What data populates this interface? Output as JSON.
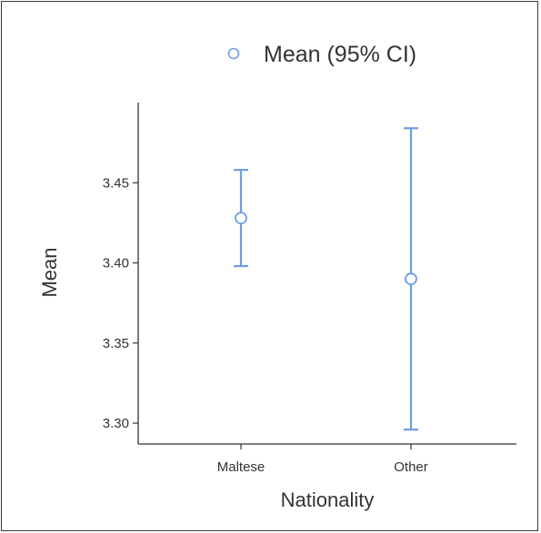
{
  "chart_data": {
    "type": "scatter",
    "title": "",
    "xlabel": "Nationality",
    "ylabel": "Mean",
    "categories": [
      "Maltese",
      "Other"
    ],
    "series": [
      {
        "name": "Mean (95% CI)",
        "color": "#6f9de8",
        "values": [
          3.428,
          3.39
        ],
        "ci_lower": [
          3.398,
          3.296
        ],
        "ci_upper": [
          3.458,
          3.484
        ]
      }
    ],
    "ylim": [
      3.287,
      3.5
    ],
    "yticks": [
      "3.30",
      "3.35",
      "3.40",
      "3.45"
    ],
    "grid": false,
    "legend_position": "top"
  }
}
